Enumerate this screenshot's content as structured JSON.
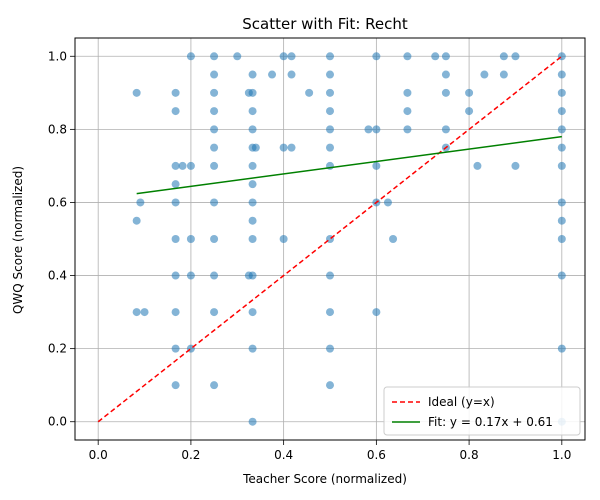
{
  "chart_data": {
    "type": "scatter",
    "title": "Scatter with Fit: Recht",
    "xlabel": "Teacher Score (normalized)",
    "ylabel": "QWQ Score (normalized)",
    "xlim": [
      -0.05,
      1.05
    ],
    "ylim": [
      -0.05,
      1.05
    ],
    "xticks": [
      0.0,
      0.2,
      0.4,
      0.6,
      0.8,
      1.0
    ],
    "yticks": [
      0.0,
      0.2,
      0.4,
      0.6,
      0.8,
      1.0
    ],
    "grid": true,
    "legend_position": "lower-right",
    "point_color": "#1f77b4",
    "ideal_color": "#ff0000",
    "fit_color": "#008000",
    "ideal_label": "Ideal (y=x)",
    "fit_label": "Fit: y = 0.17x + 0.61",
    "fit": {
      "slope": 0.17,
      "intercept": 0.61,
      "x_range": [
        0.083,
        1.0
      ]
    },
    "ideal": {
      "x_range": [
        0.0,
        1.0
      ]
    },
    "points": [
      [
        0.083,
        0.9
      ],
      [
        0.083,
        0.55
      ],
      [
        0.083,
        0.3
      ],
      [
        0.091,
        0.6
      ],
      [
        0.1,
        0.3
      ],
      [
        0.167,
        0.9
      ],
      [
        0.167,
        0.85
      ],
      [
        0.167,
        0.7
      ],
      [
        0.167,
        0.65
      ],
      [
        0.167,
        0.6
      ],
      [
        0.167,
        0.5
      ],
      [
        0.167,
        0.4
      ],
      [
        0.167,
        0.3
      ],
      [
        0.167,
        0.2
      ],
      [
        0.167,
        0.1
      ],
      [
        0.182,
        0.7
      ],
      [
        0.2,
        1.0
      ],
      [
        0.2,
        0.7
      ],
      [
        0.2,
        0.5
      ],
      [
        0.2,
        0.4
      ],
      [
        0.2,
        0.2
      ],
      [
        0.25,
        1.0
      ],
      [
        0.25,
        0.95
      ],
      [
        0.25,
        0.9
      ],
      [
        0.25,
        0.85
      ],
      [
        0.25,
        0.8
      ],
      [
        0.25,
        0.75
      ],
      [
        0.25,
        0.7
      ],
      [
        0.25,
        0.6
      ],
      [
        0.25,
        0.5
      ],
      [
        0.25,
        0.4
      ],
      [
        0.25,
        0.3
      ],
      [
        0.25,
        0.1
      ],
      [
        0.3,
        1.0
      ],
      [
        0.333,
        0.95
      ],
      [
        0.333,
        0.9
      ],
      [
        0.333,
        0.85
      ],
      [
        0.333,
        0.8
      ],
      [
        0.333,
        0.75
      ],
      [
        0.333,
        0.7
      ],
      [
        0.333,
        0.65
      ],
      [
        0.333,
        0.6
      ],
      [
        0.333,
        0.55
      ],
      [
        0.333,
        0.5
      ],
      [
        0.333,
        0.4
      ],
      [
        0.333,
        0.3
      ],
      [
        0.333,
        0.2
      ],
      [
        0.333,
        0.0
      ],
      [
        0.325,
        0.9
      ],
      [
        0.325,
        0.4
      ],
      [
        0.34,
        0.75
      ],
      [
        0.375,
        0.95
      ],
      [
        0.4,
        1.0
      ],
      [
        0.4,
        0.75
      ],
      [
        0.4,
        0.5
      ],
      [
        0.417,
        1.0
      ],
      [
        0.417,
        0.95
      ],
      [
        0.417,
        0.75
      ],
      [
        0.455,
        0.9
      ],
      [
        0.5,
        1.0
      ],
      [
        0.5,
        0.95
      ],
      [
        0.5,
        0.9
      ],
      [
        0.5,
        0.85
      ],
      [
        0.5,
        0.8
      ],
      [
        0.5,
        0.75
      ],
      [
        0.5,
        0.7
      ],
      [
        0.5,
        0.5
      ],
      [
        0.5,
        0.4
      ],
      [
        0.5,
        0.3
      ],
      [
        0.5,
        0.2
      ],
      [
        0.5,
        0.1
      ],
      [
        0.583,
        0.8
      ],
      [
        0.6,
        1.0
      ],
      [
        0.6,
        0.8
      ],
      [
        0.6,
        0.7
      ],
      [
        0.6,
        0.6
      ],
      [
        0.6,
        0.3
      ],
      [
        0.625,
        0.6
      ],
      [
        0.636,
        0.5
      ],
      [
        0.667,
        1.0
      ],
      [
        0.667,
        0.9
      ],
      [
        0.667,
        0.85
      ],
      [
        0.667,
        0.8
      ],
      [
        0.727,
        1.0
      ],
      [
        0.75,
        1.0
      ],
      [
        0.75,
        0.95
      ],
      [
        0.75,
        0.9
      ],
      [
        0.75,
        0.8
      ],
      [
        0.75,
        0.75
      ],
      [
        0.8,
        0.9
      ],
      [
        0.8,
        0.85
      ],
      [
        0.818,
        0.7
      ],
      [
        0.833,
        0.95
      ],
      [
        0.875,
        1.0
      ],
      [
        0.875,
        0.95
      ],
      [
        0.9,
        1.0
      ],
      [
        0.9,
        0.7
      ],
      [
        1.0,
        1.0
      ],
      [
        1.0,
        0.95
      ],
      [
        1.0,
        0.9
      ],
      [
        1.0,
        0.85
      ],
      [
        1.0,
        0.8
      ],
      [
        1.0,
        0.75
      ],
      [
        1.0,
        0.7
      ],
      [
        1.0,
        0.6
      ],
      [
        1.0,
        0.55
      ],
      [
        1.0,
        0.5
      ],
      [
        1.0,
        0.4
      ],
      [
        1.0,
        0.2
      ],
      [
        1.0,
        0.0
      ]
    ]
  }
}
